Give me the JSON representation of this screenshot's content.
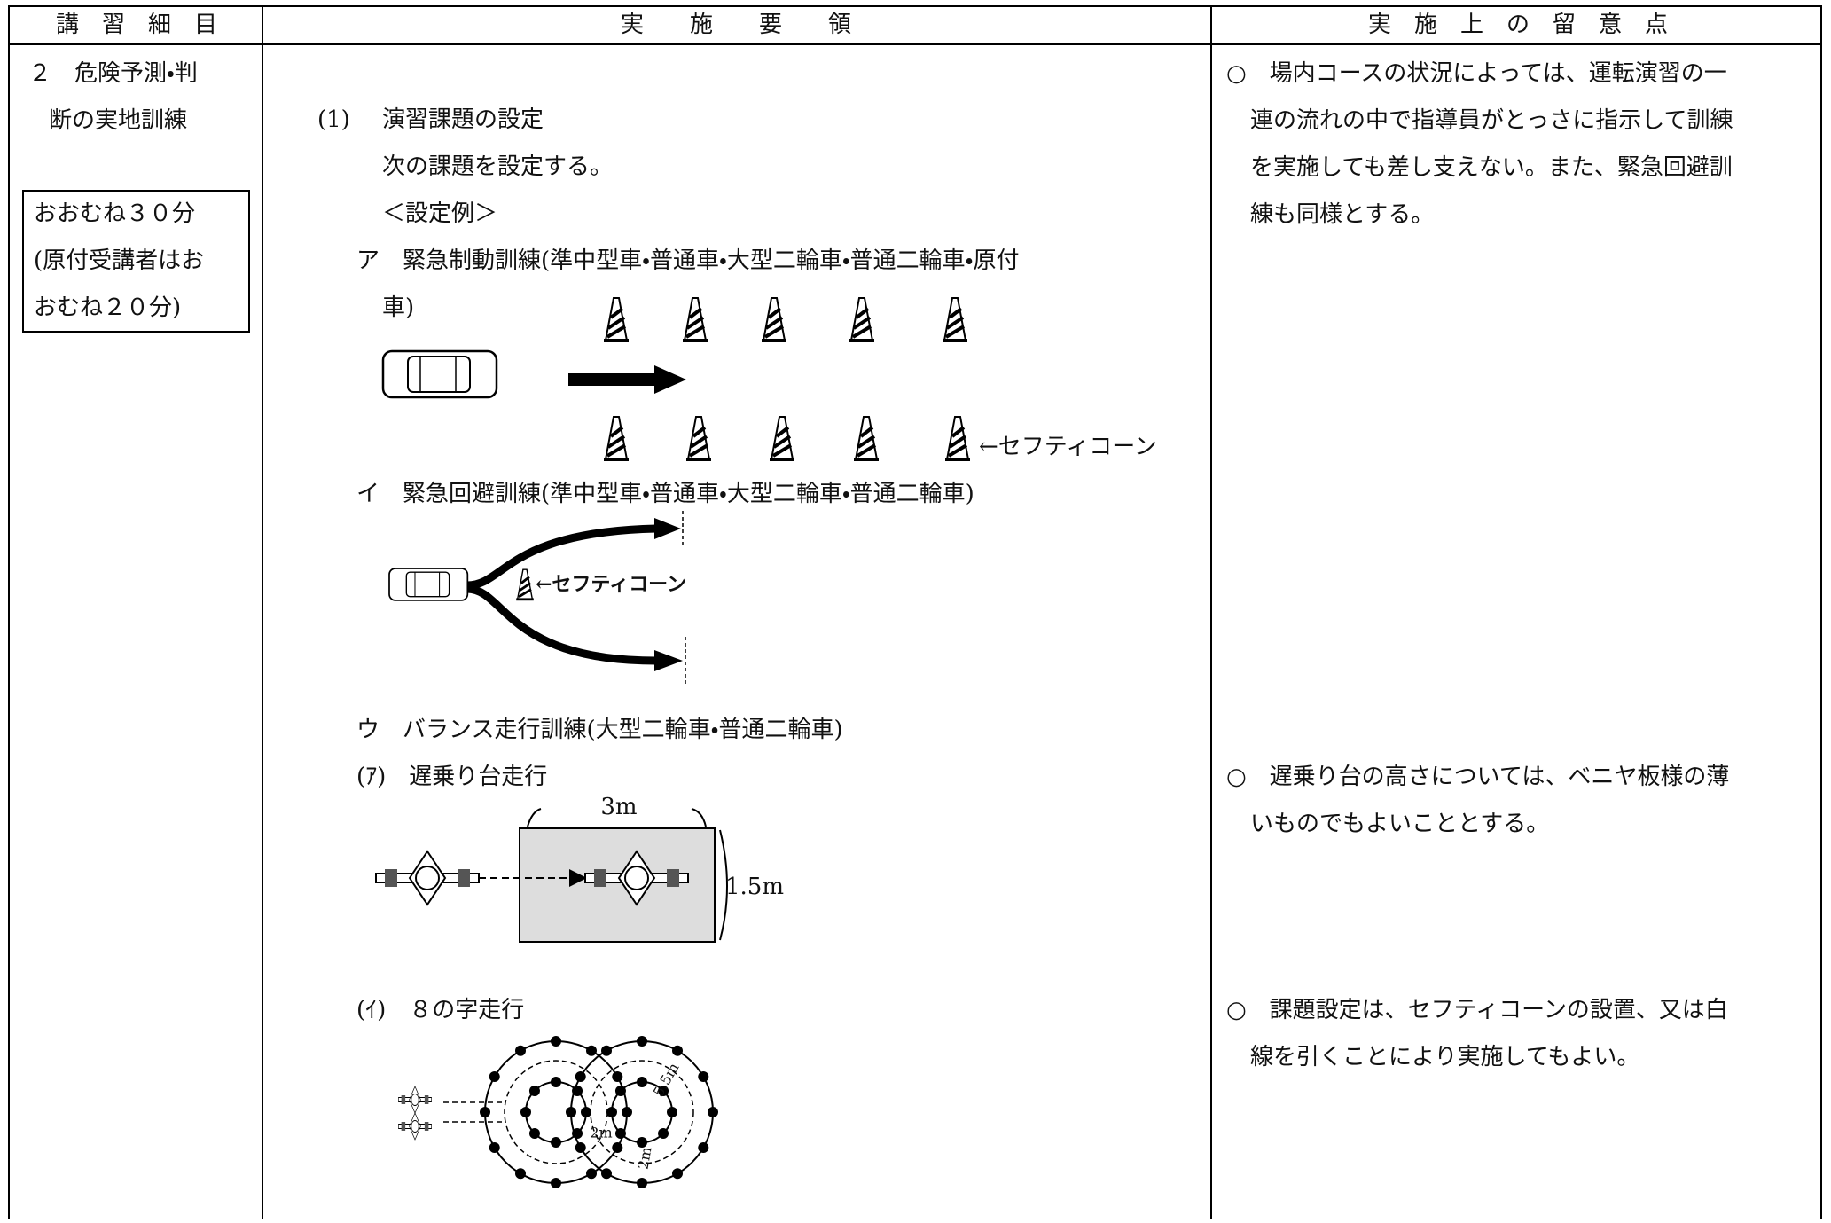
{
  "header": {
    "columns": [
      "講　習　細　目",
      "実　　施　　要　　領",
      "実　施　上　の　留　意　点"
    ]
  },
  "left": {
    "title_lines": [
      "２　危険予測・判",
      "断の実地訓練"
    ],
    "time_box_lines": [
      "おおむね３０分",
      "(原付受講者はお",
      "おむね２０分)"
    ]
  },
  "middle": {
    "section_number": "(1)",
    "section_title": "演習課題の設定",
    "intro": "次の課題を設定する。",
    "example_heading": "＜設定例＞",
    "a_lines": [
      "ア　緊急制動訓練(準中型車・普通車・大型二輪車・普通二輪車・原付",
      "車)"
    ],
    "a_cone_label": "←セフティコーン",
    "b_line": "イ　緊急回避訓練(準中型車・普通車・大型二輪車・普通二輪車)",
    "b_cone_label": "←セフティコーン",
    "c_line": "ウ　バランス走行訓練(大型二輪車・普通二輪車)",
    "c1_title": "(ｱ)　遅乗り台走行",
    "c1_length": "3m",
    "c1_width": "1.5m",
    "c2_title": "(ｲ)　８の字走行",
    "c2_gap": "2m",
    "c2_radius": "5.5m",
    "c2_lane": "2m"
  },
  "right": {
    "notes": [
      [
        "○　場内コースの状況によっては、運転演習の一",
        "連の流れの中で指導員がとっさに指示して訓練",
        "を実施しても差し支えない。また、緊急回避訓",
        "練も同様とする。"
      ],
      [
        "○　遅乗り台の高さについては、ベニヤ板様の薄",
        "いものでもよいこととする。"
      ],
      [
        "○　課題設定は、セフティコーンの設置、又は白",
        "線を引くことにより実施してもよい。"
      ]
    ]
  }
}
